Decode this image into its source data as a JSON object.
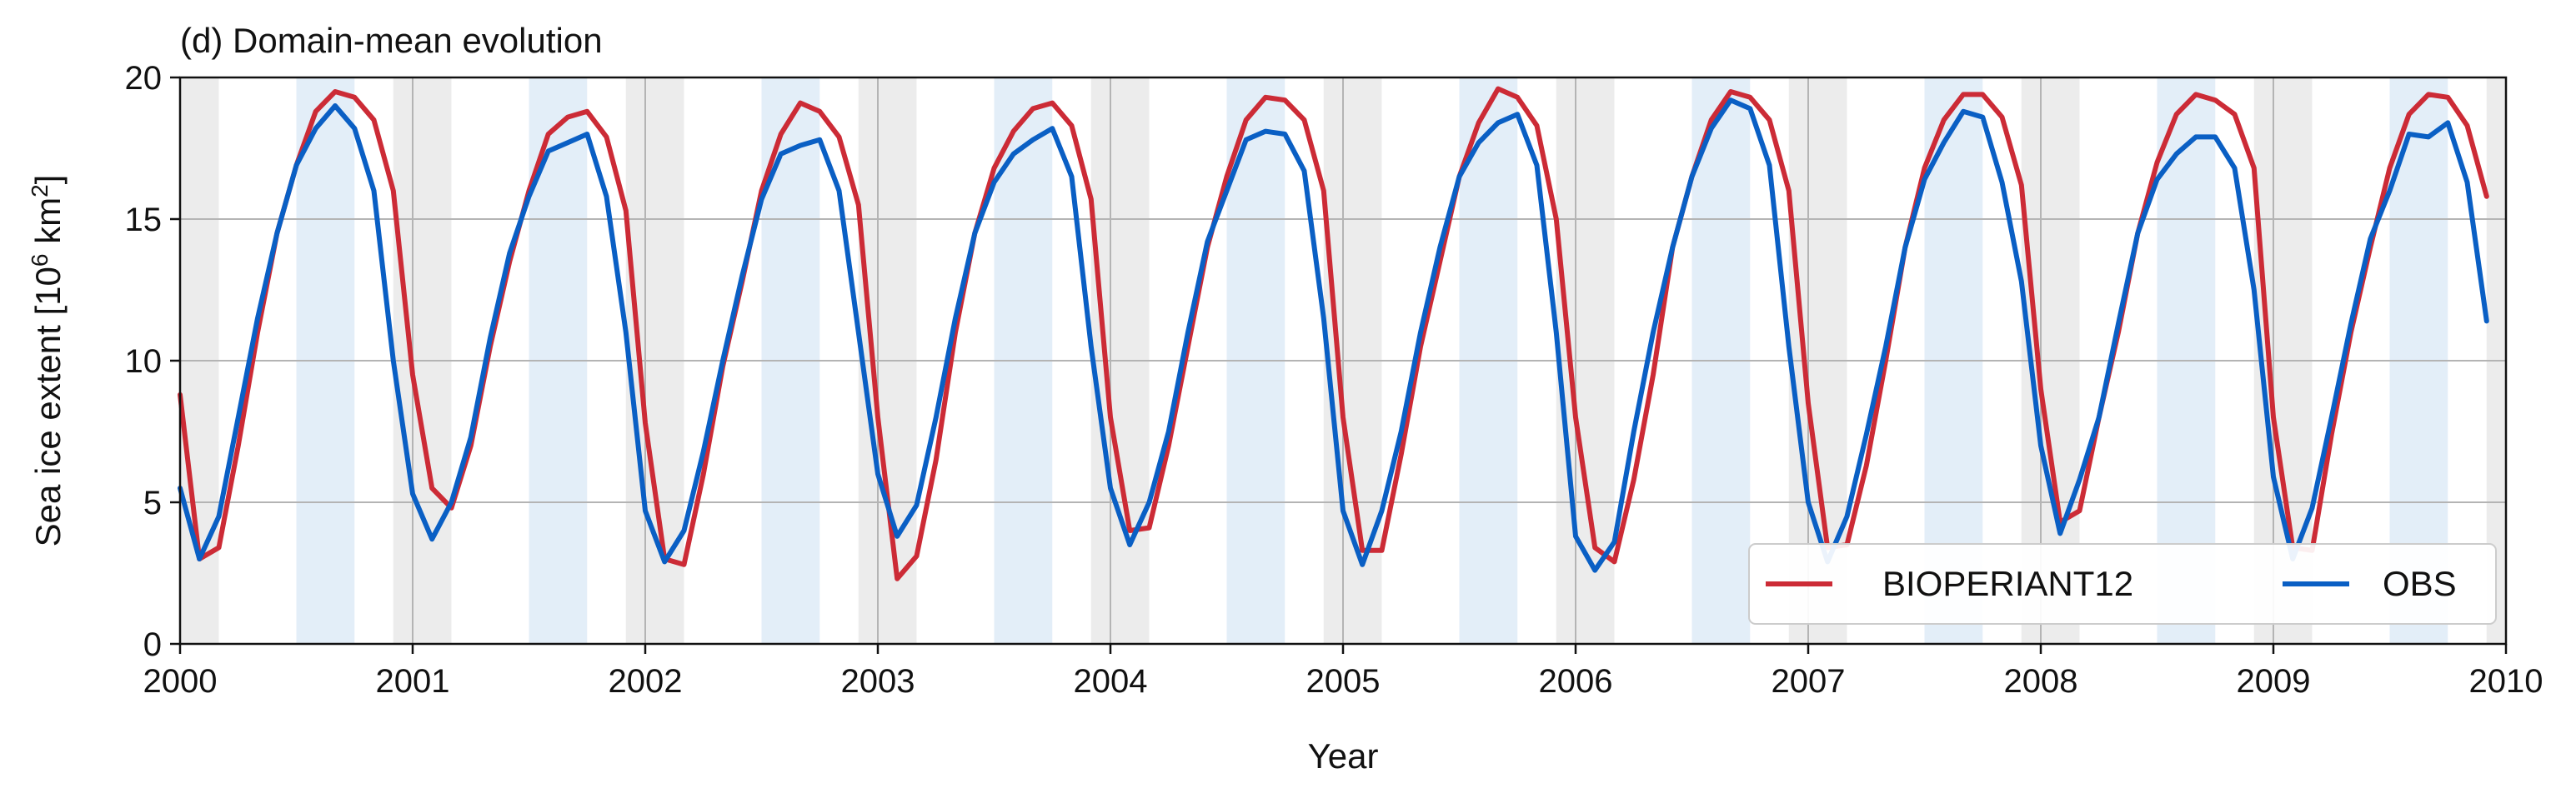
{
  "chart_data": {
    "type": "line",
    "title": "(d) Domain-mean evolution",
    "xlabel": "Year",
    "ylabel_main": "Sea ice extent [10",
    "ylabel_sup1": "6",
    "ylabel_mid": " km",
    "ylabel_sup2": "2",
    "ylabel_end": "]",
    "xlim": [
      2000,
      2010
    ],
    "ylim": [
      0,
      20
    ],
    "xticks": [
      2000,
      2001,
      2002,
      2003,
      2004,
      2005,
      2006,
      2007,
      2008,
      2009,
      2010
    ],
    "yticks": [
      0,
      5,
      10,
      15,
      20
    ],
    "grid": true,
    "legend_position": "lower-right",
    "shading": {
      "summer_color": "#e3eef8",
      "winter_color": "#ececec",
      "summer_months": [
        "Jul",
        "Aug",
        "Sep"
      ],
      "winter_months": [
        "Dec",
        "Jan",
        "Feb"
      ]
    },
    "series": [
      {
        "name": "BIOPERIANT12",
        "color": "#cc2b36",
        "values": [
          8.8,
          3.0,
          3.4,
          7.0,
          11.0,
          14.5,
          16.9,
          18.8,
          19.5,
          19.3,
          18.5,
          16.0,
          9.5,
          5.5,
          4.8,
          7.0,
          10.5,
          13.5,
          16.0,
          18.0,
          18.6,
          18.8,
          17.9,
          15.3,
          7.8,
          3.0,
          2.8,
          6.0,
          9.8,
          12.8,
          16.0,
          18.0,
          19.1,
          18.8,
          17.9,
          15.5,
          8.0,
          2.3,
          3.1,
          6.5,
          11.0,
          14.5,
          16.8,
          18.1,
          18.9,
          19.1,
          18.3,
          15.7,
          8.0,
          4.0,
          4.1,
          7.0,
          10.5,
          14.0,
          16.5,
          18.5,
          19.3,
          19.2,
          18.5,
          16.0,
          8.0,
          3.3,
          3.3,
          6.7,
          10.5,
          13.5,
          16.5,
          18.4,
          19.6,
          19.3,
          18.3,
          15.0,
          8.0,
          3.4,
          2.9,
          5.8,
          9.5,
          14.0,
          16.5,
          18.5,
          19.5,
          19.3,
          18.5,
          16.0,
          8.5,
          3.4,
          3.5,
          6.3,
          10.0,
          14.0,
          16.8,
          18.5,
          19.4,
          19.4,
          18.6,
          16.2,
          9.0,
          4.3,
          4.7,
          8.0,
          11.0,
          14.5,
          17.0,
          18.7,
          19.4,
          19.2,
          18.7,
          16.8,
          8.0,
          3.4,
          3.3,
          7.4,
          11.0,
          14.0,
          16.8,
          18.7,
          19.4,
          19.3,
          18.3,
          15.8
        ]
      },
      {
        "name": "OBS",
        "color": "#0a5fc4",
        "values": [
          5.5,
          3.0,
          4.5,
          8.0,
          11.5,
          14.5,
          16.9,
          18.2,
          19.0,
          18.2,
          16.0,
          10.0,
          5.3,
          3.7,
          5.0,
          7.3,
          10.8,
          13.8,
          15.8,
          17.4,
          17.7,
          18.0,
          15.8,
          11.0,
          4.7,
          2.9,
          4.0,
          6.8,
          10.0,
          13.0,
          15.7,
          17.3,
          17.6,
          17.8,
          16.0,
          11.0,
          6.0,
          3.8,
          4.9,
          8.0,
          11.5,
          14.5,
          16.3,
          17.3,
          17.8,
          18.2,
          16.5,
          10.5,
          5.5,
          3.5,
          5.0,
          7.5,
          11.0,
          14.2,
          16.0,
          17.8,
          18.1,
          18.0,
          16.7,
          11.5,
          4.7,
          2.8,
          4.7,
          7.5,
          11.0,
          14.0,
          16.5,
          17.7,
          18.4,
          18.7,
          16.9,
          11.0,
          3.8,
          2.6,
          3.6,
          7.5,
          11.0,
          14.0,
          16.5,
          18.2,
          19.2,
          18.9,
          16.9,
          10.5,
          5.0,
          2.9,
          4.5,
          7.4,
          10.5,
          14.0,
          16.4,
          17.7,
          18.8,
          18.6,
          16.3,
          12.8,
          7.0,
          3.9,
          5.8,
          8.0,
          11.3,
          14.5,
          16.4,
          17.3,
          17.9,
          17.9,
          16.8,
          12.5,
          5.9,
          3.0,
          4.8,
          8.0,
          11.3,
          14.3,
          16.0,
          18.0,
          17.9,
          18.4,
          16.3,
          11.4
        ]
      }
    ]
  }
}
